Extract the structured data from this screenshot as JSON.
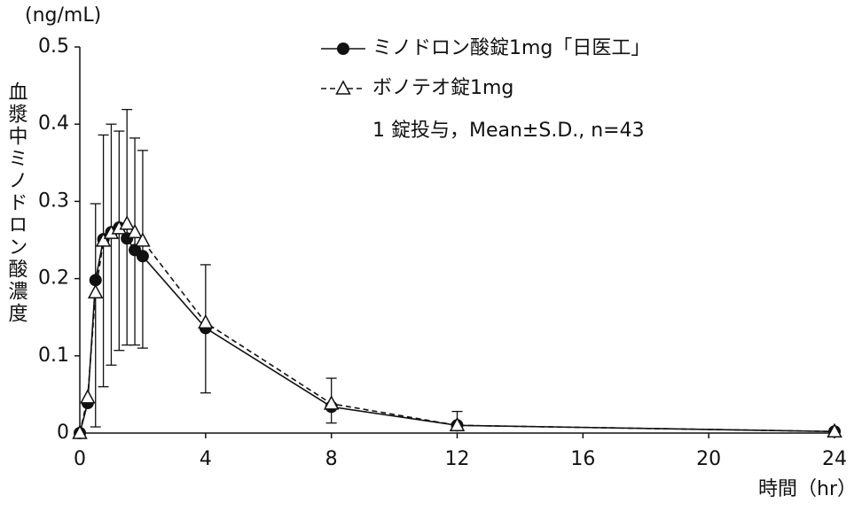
{
  "chart_data": {
    "type": "line",
    "y_unit": "(ng/mL)",
    "y_label": "血漿中ミノドロン酸濃度",
    "x_label": "時間（hr）",
    "note": "1 錠投与，Mean±S.D., n=43",
    "xlim": [
      0,
      24
    ],
    "ylim": [
      0,
      0.5
    ],
    "xticks": [
      0,
      4,
      8,
      12,
      16,
      20,
      24
    ],
    "yticks": [
      0,
      0.1,
      0.2,
      0.3,
      0.4,
      0.5
    ],
    "series": [
      {
        "name": "ミノドロン酸錠1mg「日医工」",
        "color": "#111111",
        "marker": "circle",
        "dash": false,
        "x": [
          0,
          0.25,
          0.5,
          0.75,
          1,
          1.25,
          1.5,
          1.75,
          2,
          4,
          8,
          12,
          24
        ],
        "values": [
          0,
          0.039,
          0.198,
          0.251,
          0.26,
          0.266,
          0.252,
          0.237,
          0.229,
          0.136,
          0.034,
          0.01,
          0.002
        ]
      },
      {
        "name": "ボノテオ錠1mg",
        "color": "#111111",
        "marker": "triangle",
        "dash": true,
        "x": [
          0,
          0.25,
          0.5,
          0.75,
          1,
          1.25,
          1.5,
          1.75,
          2,
          4,
          8,
          12,
          24
        ],
        "values": [
          0,
          0.046,
          0.182,
          0.249,
          0.259,
          0.265,
          0.271,
          0.26,
          0.249,
          0.143,
          0.038,
          0.01,
          0.002
        ]
      }
    ],
    "error_bars": {
      "x": [
        0.5,
        0.75,
        1,
        1.25,
        1.5,
        1.75,
        2,
        4,
        8,
        12
      ],
      "high": [
        0.297,
        0.386,
        0.4,
        0.391,
        0.419,
        0.382,
        0.366,
        0.218,
        0.071,
        0.028
      ],
      "low": [
        0.008,
        0.06,
        0.088,
        0.107,
        0.114,
        0.114,
        0.11,
        0.052,
        0.013,
        0.003
      ]
    }
  }
}
